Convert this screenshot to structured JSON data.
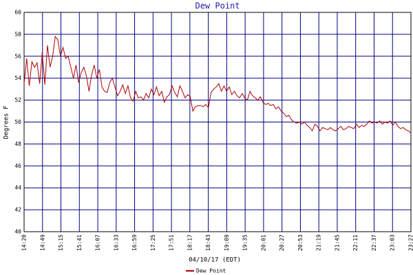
{
  "chart_data": {
    "type": "line",
    "title": "Dew Point",
    "x_label": "04/10/17 (EDT)",
    "y_label": "Degrees F",
    "x_labels": [
      "14:20",
      "14:49",
      "15:15",
      "15:41",
      "16:07",
      "16:33",
      "16:59",
      "17:25",
      "17:51",
      "18:17",
      "18:43",
      "19:09",
      "19:35",
      "20:01",
      "20:27",
      "20:53",
      "21:19",
      "21:45",
      "22:11",
      "22:37",
      "23:03",
      "23:27"
    ],
    "ylim": [
      40,
      60
    ],
    "yticks": [
      40,
      42,
      44,
      46,
      48,
      50,
      52,
      54,
      56,
      58,
      60
    ],
    "grid": true,
    "grid_color": "#000080",
    "legend": "bottom",
    "series": [
      {
        "name": "Dew Point",
        "color": "#aa0000",
        "values": [
          53.5,
          55.8,
          53.3,
          55.5,
          55.0,
          55.4,
          53.5,
          56.4,
          53.4,
          57.0,
          55.0,
          56.0,
          57.8,
          57.5,
          56.0,
          56.8,
          55.8,
          56.0,
          55.0,
          54.0,
          55.2,
          53.6,
          54.5,
          55.0,
          54.2,
          52.8,
          54.3,
          55.2,
          54.0,
          54.8,
          53.2,
          52.8,
          52.7,
          53.6,
          54.0,
          53.2,
          52.4,
          52.8,
          53.4,
          52.6,
          53.3,
          52.2,
          51.9,
          52.8,
          52.2,
          52.3,
          52.0,
          52.6,
          52.2,
          53.0,
          52.5,
          53.2,
          52.4,
          52.8,
          51.8,
          52.3,
          52.5,
          53.3,
          52.7,
          52.3,
          53.3,
          52.8,
          52.2,
          52.5,
          52.3,
          51.0,
          51.4,
          51.5,
          51.5,
          51.4,
          51.6,
          51.3,
          52.7,
          53.0,
          53.2,
          53.5,
          52.8,
          53.3,
          52.8,
          53.2,
          52.5,
          52.8,
          52.4,
          52.2,
          52.6,
          52.2,
          52.0,
          52.8,
          52.4,
          52.2,
          52.0,
          52.3,
          51.8,
          51.6,
          51.7,
          51.5,
          51.6,
          51.2,
          51.4,
          51.0,
          50.8,
          50.5,
          50.6,
          50.2,
          50.0,
          49.9,
          50.0,
          49.8,
          50.0,
          49.7,
          49.5,
          49.2,
          49.8,
          49.6,
          49.2,
          49.5,
          49.4,
          49.3,
          49.5,
          49.3,
          49.2,
          49.4,
          49.6,
          49.3,
          49.4,
          49.6,
          49.5,
          49.4,
          49.8,
          49.5,
          49.7,
          49.6,
          49.8,
          50.1,
          49.9,
          50.0,
          49.9,
          50.1,
          49.8,
          50.0,
          49.9,
          50.1,
          49.7,
          50.0,
          49.6,
          49.4,
          49.5,
          49.3,
          49.2,
          49.0
        ]
      }
    ]
  }
}
